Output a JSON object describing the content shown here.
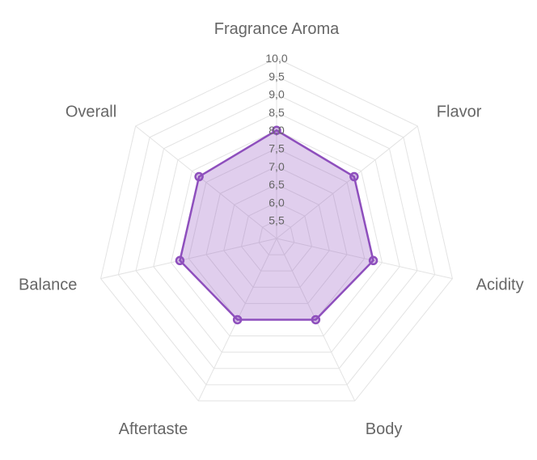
{
  "chart_data": {
    "type": "radar",
    "categories": [
      "Fragrance Aroma",
      "Flavor",
      "Acidity",
      "Body",
      "Aftertaste",
      "Balance",
      "Overall"
    ],
    "series": [
      {
        "values": [
          8.0,
          7.75,
          7.75,
          7.5,
          7.5,
          7.75,
          7.75
        ]
      }
    ],
    "rlim": [
      5.0,
      10.0
    ],
    "ticks": [
      "10,0",
      "9,5",
      "9,0",
      "8,5",
      "8,0",
      "7,5",
      "7,0",
      "6,5",
      "6,0",
      "5,5"
    ],
    "tick_values": [
      10.0,
      9.5,
      9.0,
      8.5,
      8.0,
      7.5,
      7.0,
      6.5,
      6.0,
      5.5
    ],
    "grid": true,
    "colors": {
      "line": "#8e4fbd",
      "fill": "#8e4fbd",
      "grid": "#e3e3e3",
      "text": "#666666"
    }
  }
}
